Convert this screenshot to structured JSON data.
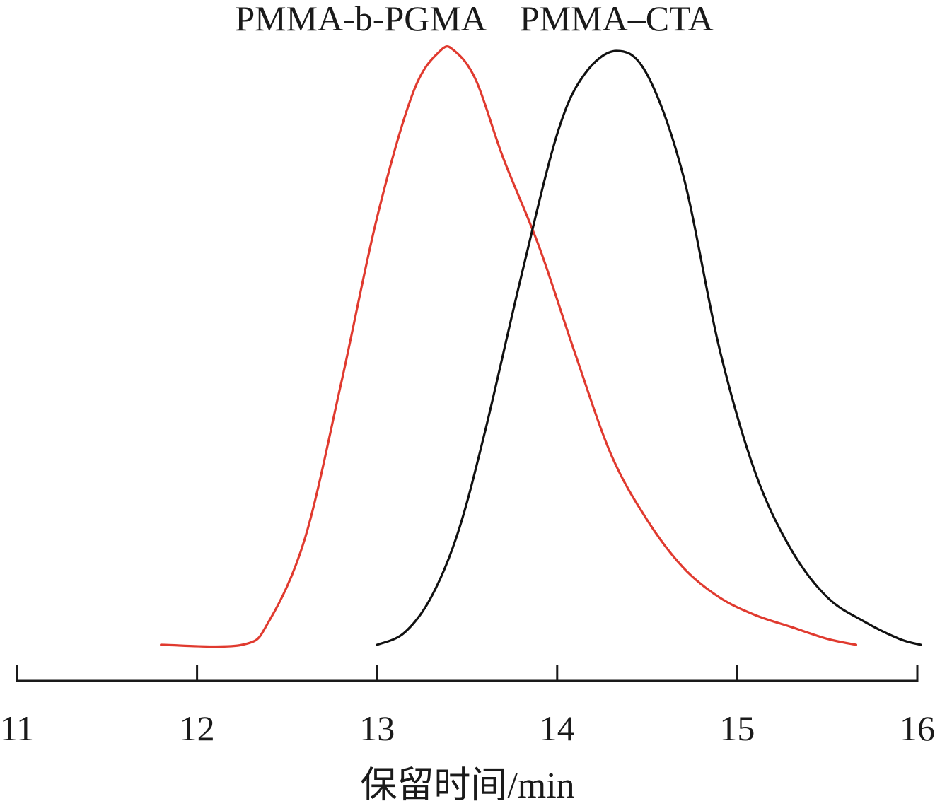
{
  "chart_data": {
    "type": "line",
    "title": "",
    "xlabel": "保留时间/min",
    "ylabel": "",
    "xlim": [
      11,
      16
    ],
    "ylim": [
      0,
      1
    ],
    "xticks": [
      "11",
      "12",
      "13",
      "14",
      "15",
      "16"
    ],
    "grid": false,
    "legend": "none",
    "series": [
      {
        "name": "PMMA-b-PGMA",
        "color": "#e03a2f",
        "x": [
          11.8,
          12.25,
          12.4,
          12.6,
          12.8,
          13.0,
          13.2,
          13.35,
          13.43,
          13.55,
          13.7,
          13.9,
          14.1,
          14.3,
          14.5,
          14.7,
          14.9,
          15.1,
          15.3,
          15.5,
          15.66
        ],
        "y": [
          0.0,
          0.0,
          0.04,
          0.18,
          0.44,
          0.72,
          0.93,
          1.0,
          1.0,
          0.95,
          0.82,
          0.67,
          0.49,
          0.32,
          0.21,
          0.13,
          0.08,
          0.05,
          0.03,
          0.01,
          0.0
        ]
      },
      {
        "name": "PMMA–CTA",
        "color": "#111111",
        "x": [
          13.0,
          13.15,
          13.3,
          13.45,
          13.6,
          13.8,
          14.0,
          14.15,
          14.33,
          14.5,
          14.7,
          14.9,
          15.1,
          15.3,
          15.5,
          15.7,
          15.9,
          16.02
        ],
        "y": [
          0.0,
          0.02,
          0.08,
          0.19,
          0.36,
          0.62,
          0.86,
          0.96,
          1.0,
          0.96,
          0.79,
          0.5,
          0.29,
          0.16,
          0.08,
          0.04,
          0.01,
          0.0
        ]
      }
    ],
    "series_labels": [
      {
        "text": "PMMA-b-PGMA",
        "x": 13.42
      },
      {
        "text": "PMMA–CTA",
        "x": 14.33
      }
    ]
  }
}
